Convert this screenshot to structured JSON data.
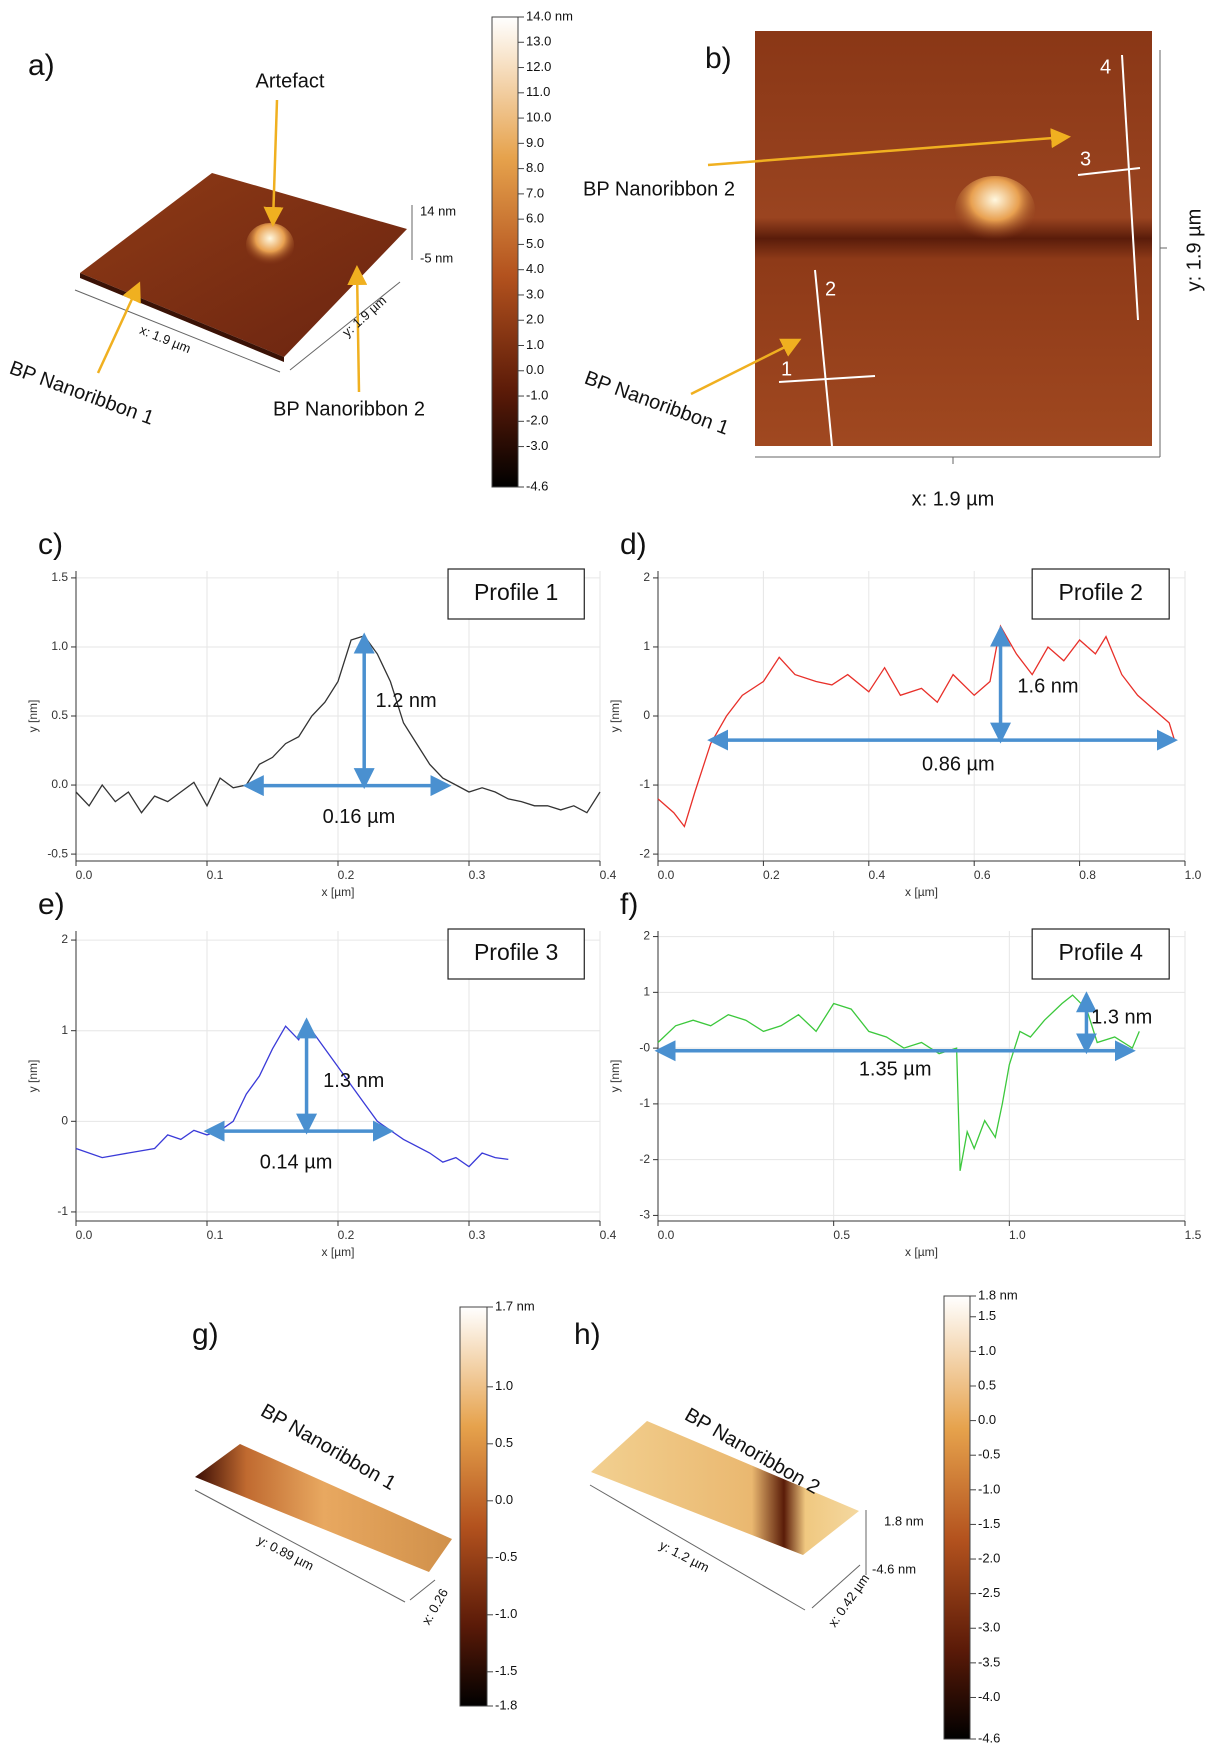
{
  "panels": {
    "a": {
      "label": "a)",
      "annotations": [
        "Artefact",
        "BP Nanoribbon 1",
        "BP Nanoribbon 2"
      ],
      "axis_labels": [
        "x: 1.9 µm",
        "y: 1.9 µm",
        "14 nm",
        "-5 nm"
      ],
      "colorbar": {
        "range": [
          -4.6,
          14.0
        ],
        "ticks": [
          {
            "value": 14,
            "label": "14.0 nm"
          },
          {
            "value": 13,
            "label": "13.0"
          },
          {
            "value": 12,
            "label": "12.0"
          },
          {
            "value": 11,
            "label": "11.0"
          },
          {
            "value": 10,
            "label": "10.0"
          },
          {
            "value": 9,
            "label": "9.0"
          },
          {
            "value": 8,
            "label": "8.0"
          },
          {
            "value": 7,
            "label": "7.0"
          },
          {
            "value": 6,
            "label": "6.0"
          },
          {
            "value": 5,
            "label": "5.0"
          },
          {
            "value": 4,
            "label": "4.0"
          },
          {
            "value": 3,
            "label": "3.0"
          },
          {
            "value": 2,
            "label": "2.0"
          },
          {
            "value": 1,
            "label": "1.0"
          },
          {
            "value": 0,
            "label": "0.0"
          },
          {
            "value": -1,
            "label": "-1.0"
          },
          {
            "value": -2,
            "label": "-2.0"
          },
          {
            "value": -3,
            "label": "-3.0"
          },
          -4.6
        ]
      }
    },
    "b": {
      "label": "b)",
      "annotations": [
        "BP Nanoribbon 2",
        "BP Nanoribbon 1"
      ],
      "axis_labels": [
        "x: 1.9 µm",
        "y: 1.9 µm"
      ],
      "profile_lines": [
        "1",
        "2",
        "3",
        "4"
      ]
    },
    "g": {
      "label": "g)",
      "annotation": "BP Nanoribbon 1",
      "axis_labels": [
        "y: 0.89 µm",
        "x: 0.26"
      ],
      "colorbar": {
        "range": [
          -1.8,
          1.7
        ],
        "ticks": [
          {
            "value": 1.7,
            "label": "1.7 nm"
          },
          {
            "value": 1,
            "label": "1.0"
          },
          0.5,
          {
            "value": 0,
            "label": "0.0"
          },
          -0.5,
          {
            "value": -1,
            "label": "-1.0"
          },
          -1.5,
          -1.8
        ]
      }
    },
    "h": {
      "label": "h)",
      "annotation": "BP Nanoribbon 2",
      "axis_labels": [
        "y: 1.2 µm",
        "x: 0.42 µm",
        "1.8 nm",
        "-4.6 nm"
      ],
      "colorbar": {
        "range": [
          -4.6,
          1.8
        ],
        "ticks": [
          {
            "value": 1.8,
            "label": "1.8 nm"
          },
          1.5,
          {
            "value": 1,
            "label": "1.0"
          },
          0.5,
          {
            "value": 0,
            "label": "0.0"
          },
          -0.5,
          {
            "value": -1,
            "label": "-1.0"
          },
          -1.5,
          {
            "value": -2,
            "label": "-2.0"
          },
          -2.5,
          {
            "value": -3,
            "label": "-3.0"
          },
          -3.5,
          {
            "value": -4,
            "label": "-4.0"
          },
          -4.6
        ]
      }
    }
  },
  "chart_data": [
    {
      "type": "line",
      "panel_label": "c)",
      "title": "Profile 1",
      "x_label": "x [µm]",
      "y_label": "y [nm]",
      "annotations": [
        "1.2 nm",
        "0.16 µm"
      ],
      "grid": true,
      "xlim": [
        0,
        0.4
      ],
      "ylim": [
        -0.55,
        1.55
      ],
      "xticks": [
        {
          "value": 0,
          "label": "0.0"
        },
        0.1,
        0.2,
        0.3,
        0.4
      ],
      "yticks": [
        -0.5,
        {
          "value": 0,
          "label": "0.0"
        },
        0.5,
        {
          "value": 1,
          "label": "1.0"
        },
        1.5
      ],
      "x": [
        0,
        0.01,
        0.02,
        0.03,
        0.04,
        0.05,
        0.06,
        0.07,
        0.08,
        0.09,
        0.1,
        0.11,
        0.12,
        0.13,
        0.14,
        0.15,
        0.16,
        0.17,
        0.18,
        0.19,
        0.2,
        0.21,
        0.22,
        0.23,
        0.24,
        0.25,
        0.26,
        0.27,
        0.28,
        0.29,
        0.3,
        0.31,
        0.32,
        0.33,
        0.34,
        0.35,
        0.36,
        0.37,
        0.38,
        0.39,
        0.4
      ],
      "series": [
        {
          "color": "#333333",
          "values": [
            -0.05,
            -0.15,
            0.0,
            -0.12,
            -0.05,
            -0.2,
            -0.08,
            -0.12,
            -0.05,
            0.02,
            -0.15,
            0.05,
            -0.02,
            0.0,
            0.15,
            0.2,
            0.3,
            0.35,
            0.5,
            0.6,
            0.75,
            1.05,
            1.08,
            0.95,
            0.75,
            0.45,
            0.3,
            0.15,
            0.05,
            0.0,
            -0.05,
            -0.02,
            -0.05,
            -0.1,
            -0.12,
            -0.15,
            -0.15,
            -0.18,
            -0.15,
            -0.2,
            -0.05
          ]
        }
      ]
    },
    {
      "type": "line",
      "panel_label": "d)",
      "title": "Profile 2",
      "x_label": "x [µm]",
      "y_label": "y [nm]",
      "annotations": [
        "1.6 nm",
        "0.86 µm"
      ],
      "grid": true,
      "xlim": [
        0,
        1.0
      ],
      "ylim": [
        -2.1,
        2.1
      ],
      "xticks": [
        {
          "value": 0,
          "label": "0.0"
        },
        0.2,
        0.4,
        0.6,
        0.8,
        {
          "value": 1,
          "label": "1.0"
        }
      ],
      "yticks": [
        -2,
        -1,
        0,
        1,
        2
      ],
      "x": [
        0,
        0.03,
        0.05,
        0.07,
        0.1,
        0.13,
        0.16,
        0.2,
        0.23,
        0.26,
        0.3,
        0.33,
        0.36,
        0.4,
        0.43,
        0.46,
        0.5,
        0.53,
        0.56,
        0.6,
        0.63,
        0.65,
        0.68,
        0.71,
        0.74,
        0.77,
        0.8,
        0.83,
        0.85,
        0.88,
        0.91,
        0.94,
        0.97,
        0.98
      ],
      "series": [
        {
          "color": "#e8302a",
          "values": [
            -1.2,
            -1.4,
            -1.6,
            -1.1,
            -0.4,
            0.0,
            0.3,
            0.5,
            0.85,
            0.6,
            0.5,
            0.45,
            0.6,
            0.35,
            0.7,
            0.3,
            0.4,
            0.2,
            0.6,
            0.3,
            0.5,
            1.3,
            0.9,
            0.6,
            1.0,
            0.8,
            1.1,
            0.9,
            1.15,
            0.6,
            0.3,
            0.1,
            -0.1,
            -0.35
          ]
        }
      ]
    },
    {
      "type": "line",
      "panel_label": "e)",
      "title": "Profile 3",
      "x_label": "x [µm]",
      "y_label": "y [nm]",
      "annotations": [
        "1.3 nm",
        "0.14 µm"
      ],
      "grid": true,
      "xlim": [
        0,
        0.4
      ],
      "ylim": [
        -1.1,
        2.1
      ],
      "xticks": [
        {
          "value": 0,
          "label": "0.0"
        },
        0.1,
        0.2,
        0.3,
        0.4
      ],
      "yticks": [
        -1,
        0,
        1,
        2
      ],
      "x": [
        0,
        0.02,
        0.04,
        0.06,
        0.07,
        0.08,
        0.09,
        0.1,
        0.11,
        0.12,
        0.13,
        0.14,
        0.15,
        0.16,
        0.17,
        0.175,
        0.19,
        0.2,
        0.21,
        0.22,
        0.23,
        0.24,
        0.25,
        0.27,
        0.28,
        0.29,
        0.3,
        0.31,
        0.32,
        0.33
      ],
      "series": [
        {
          "color": "#3a3ad8",
          "values": [
            -0.3,
            -0.4,
            -0.35,
            -0.3,
            -0.15,
            -0.2,
            -0.1,
            -0.15,
            -0.1,
            0.0,
            0.3,
            0.5,
            0.8,
            1.05,
            0.9,
            1.1,
            0.8,
            0.6,
            0.4,
            0.2,
            0.0,
            -0.1,
            -0.2,
            -0.35,
            -0.45,
            -0.4,
            -0.5,
            -0.35,
            -0.4,
            -0.42
          ]
        }
      ]
    },
    {
      "type": "line",
      "panel_label": "f)",
      "title": "Profile 4",
      "x_label": "x [µm]",
      "y_label": "y [nm]",
      "annotations": [
        "1.3 nm",
        "1.35 µm"
      ],
      "grid": true,
      "xlim": [
        0,
        1.5
      ],
      "ylim": [
        -3.1,
        2.1
      ],
      "xticks": [
        {
          "value": 0,
          "label": "0.0"
        },
        0.5,
        {
          "value": 1,
          "label": "1.0"
        },
        1.5
      ],
      "yticks": [
        -3,
        -2,
        -1,
        {
          "value": 0,
          "label": "-0"
        },
        1,
        2
      ],
      "x": [
        0,
        0.05,
        0.1,
        0.15,
        0.2,
        0.25,
        0.3,
        0.35,
        0.4,
        0.45,
        0.5,
        0.55,
        0.6,
        0.65,
        0.7,
        0.75,
        0.8,
        0.85,
        0.86,
        0.88,
        0.9,
        0.93,
        0.96,
        0.98,
        1.0,
        1.03,
        1.06,
        1.1,
        1.15,
        1.18,
        1.22,
        1.25,
        1.3,
        1.35,
        1.37
      ],
      "series": [
        {
          "color": "#3cc83c",
          "values": [
            0.1,
            0.4,
            0.5,
            0.4,
            0.6,
            0.5,
            0.3,
            0.4,
            0.6,
            0.3,
            0.8,
            0.7,
            0.3,
            0.2,
            0.0,
            0.1,
            -0.1,
            0.0,
            -2.2,
            -1.5,
            -1.8,
            -1.3,
            -1.6,
            -1.0,
            -0.3,
            0.3,
            0.2,
            0.5,
            0.8,
            0.95,
            0.7,
            0.1,
            0.2,
            0.0,
            0.3
          ]
        }
      ]
    }
  ]
}
